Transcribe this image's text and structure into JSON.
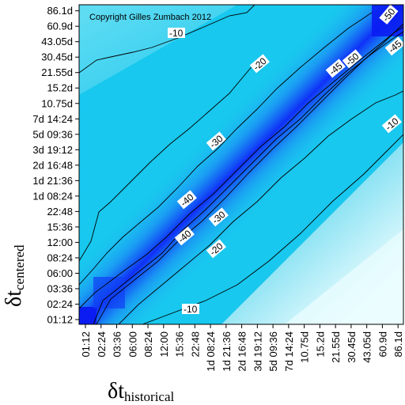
{
  "chart_data": {
    "type": "heatmap",
    "copyright": "Copyright Gilles Zumbach 2012",
    "xlabel": {
      "symbol": "δt",
      "subscript": "historical"
    },
    "ylabel": {
      "symbol": "δt",
      "subscript": "centered"
    },
    "x_ticks": [
      "01:12",
      "02:24",
      "03:36",
      "06:00",
      "08:24",
      "12:00",
      "15:36",
      "22:48",
      "1d 08:24",
      "1d 21:36",
      "2d 16:48",
      "3d 19:12",
      "5d 09:36",
      "7d 14:24",
      "10.75d",
      "15.2d",
      "21.55d",
      "30.45d",
      "43.05d",
      "60.9d",
      "86.1d"
    ],
    "y_ticks": [
      "01:12",
      "02:24",
      "03:36",
      "06:00",
      "08:24",
      "12:00",
      "15:36",
      "22:48",
      "1d 08:24",
      "1d 21:36",
      "2d 16:48",
      "3d 19:12",
      "5d 09:36",
      "7d 14:24",
      "10.75d",
      "15.2d",
      "21.55d",
      "30.45d",
      "43.05d",
      "60.9d",
      "86.1d"
    ],
    "contour_levels": [
      -10,
      -20,
      -30,
      -40,
      -45,
      -50
    ],
    "contour_labels": [
      "-10",
      "-10",
      "-10",
      "-20",
      "-20",
      "-20",
      "-30",
      "-30",
      "-40",
      "-40",
      "-45",
      "-50",
      "-50",
      "-45"
    ],
    "colorscale": {
      "low": "#0000ff",
      "mid": "#18c8ee",
      "high": "#ffffff"
    }
  }
}
